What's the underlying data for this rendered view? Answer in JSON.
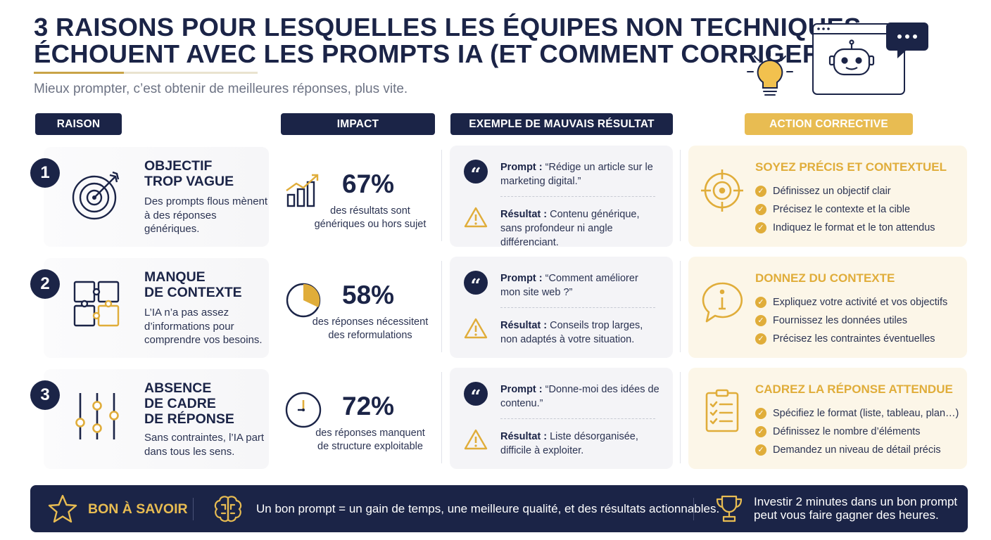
{
  "header": {
    "title_line1": "3 raisons pour lesquelles les équipes non techniques",
    "title_line2": "échouent avec les prompts IA (et comment corriger)",
    "subtitle": "Mieux prompter, c’est obtenir de meilleures réponses, plus vite."
  },
  "columns": {
    "raison": "RAISON",
    "impact": "IMPACT",
    "exemple": "EXEMPLE DE MAUVAIS RÉSULTAT",
    "action": "ACTION CORRECTIVE"
  },
  "rows": [
    {
      "number": "1",
      "icon": "target-icon",
      "title_line1": "Objectif",
      "title_line2": "trop vague",
      "title_line3": "",
      "description": "Des prompts flous mènent à des réponses génériques.",
      "impact_icon": "bar-chart-icon",
      "impact_value": "67%",
      "impact_text": "des résultats sont génériques ou hors sujet",
      "prompt_label": "Prompt :",
      "prompt_text": "“Rédige un article sur le marketing digital.”",
      "result_label": "Résultat :",
      "result_text": "Contenu générique, sans profondeur ni angle différenciant.",
      "action_icon": "crosshair-icon",
      "action_title": "Soyez précis et contextuel",
      "action_items": [
        "Définissez un objectif clair",
        "Précisez le contexte et la cible",
        "Indiquez le format et le ton attendus"
      ]
    },
    {
      "number": "2",
      "icon": "puzzle-icon",
      "title_line1": "Manque",
      "title_line2": "de contexte",
      "title_line3": "",
      "description": "L’IA n’a pas assez d’informations pour comprendre vos besoins.",
      "impact_icon": "pie-chart-icon",
      "impact_value": "58%",
      "impact_text": "des réponses nécessitent des reformulations",
      "prompt_label": "Prompt :",
      "prompt_text": "“Comment améliorer mon site web ?”",
      "result_label": "Résultat :",
      "result_text": "Conseils trop larges, non adaptés à votre situation.",
      "action_icon": "info-bubble-icon",
      "action_title": "Donnez du contexte",
      "action_items": [
        "Expliquez votre activité et vos objectifs",
        "Fournissez les données utiles",
        "Précisez les contraintes éventuelles"
      ]
    },
    {
      "number": "3",
      "icon": "sliders-icon",
      "title_line1": "Absence",
      "title_line2": "de cadre",
      "title_line3": "de réponse",
      "description": "Sans contraintes, l’IA part dans tous les sens.",
      "impact_icon": "clock-icon",
      "impact_value": "72%",
      "impact_text": "des réponses manquent de structure exploitable",
      "prompt_label": "Prompt :",
      "prompt_text": "“Donne-moi des idées de contenu.”",
      "result_label": "Résultat :",
      "result_text": "Liste désorganisée, difficile à exploiter.",
      "action_icon": "checklist-icon",
      "action_title": "Cadrez la réponse attendue",
      "action_items": [
        "Spécifiez le format (liste, tableau, plan…)",
        "Définissez le nombre d’éléments",
        "Demandez un niveau de détail précis"
      ]
    }
  ],
  "footer": {
    "label": "BON À SAVOIR",
    "text": "Un bon prompt = un gain de temps, une meilleure qualité, et des résultats actionnables.",
    "text2": "Investir 2 minutes dans un bon prompt peut vous faire gagner des heures."
  },
  "colors": {
    "navy": "#1b2447",
    "gold": "#e0ad3a",
    "gold_light": "#fcf6e8"
  }
}
